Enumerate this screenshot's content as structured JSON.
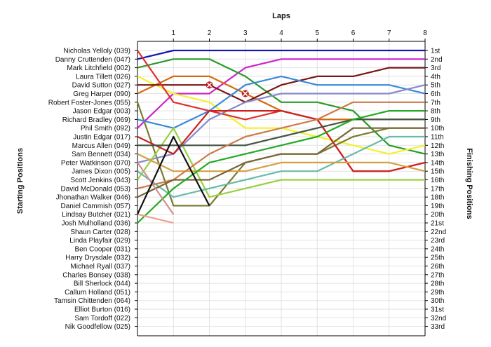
{
  "chart_data": {
    "type": "line",
    "title": "Laps",
    "ylabel_left": "Starting Positions",
    "ylabel_right": "Finishing Positions",
    "x": [
      0,
      1,
      2,
      3,
      4,
      5,
      6,
      7,
      8
    ],
    "x_tick_labels": [
      "1",
      "2",
      "3",
      "4",
      "5",
      "6",
      "7",
      "8"
    ],
    "ylim": [
      1,
      33
    ],
    "y_inverted": true,
    "grid": true,
    "starting_labels": [
      "Nicholas Yelloly (039)",
      "Danny Cruttenden (047)",
      "Mark Litchfield (002)",
      "Laura Tillett (026)",
      "David Sutton (027)",
      "Greg Harper (090)",
      "Robert Foster-Jones (055)",
      "Jason Edgar (003)",
      "Richard Bradley (069)",
      "Phil Smith (092)",
      "Justin Edgar (017)",
      "Marcus Allen (049)",
      "Sam Bennett (034)",
      "Peter Watkinson (070)",
      "James Dixon (005)",
      "Scott Jenkins (043)",
      "David McDonald (053)",
      "Jhonathan Walker (046)",
      "Daniel Cammish (057)",
      "Lindsay Butcher (021)",
      "Josh Mulholland (036)",
      "Shaun Carter (028)",
      "Linda Playfair (029)",
      "Ben Cooper (031)",
      "Harry Drysdale (032)",
      "Michael Ryall (037)",
      "Charles Bonsey (038)",
      "Bill Sherlock (044)",
      "Callum Holland (051)",
      "Tamsin Chittenden (064)",
      "Elliot Burton (016)",
      "Sam Tordoff (022)",
      "Nik Goodfellow (025)"
    ],
    "finishing_labels": [
      "1st",
      "2nd",
      "3rd",
      "4th",
      "5th",
      "6th",
      "7th",
      "8th",
      "9th",
      "10th",
      "11th",
      "12th",
      "13th",
      "14th",
      "15th",
      "16th",
      "17th",
      "18th",
      "19th",
      "20th",
      "21st",
      "22nd",
      "23rd",
      "24th",
      "25th",
      "26th",
      "27th",
      "28th",
      "29th",
      "30th",
      "31st",
      "32nd",
      "33rd"
    ],
    "series": [
      {
        "color": "#1515b0",
        "values": [
          2,
          1,
          1,
          1,
          1,
          1,
          1,
          1,
          1
        ]
      },
      {
        "color": "#cc22cc",
        "values": [
          10,
          6,
          6,
          3,
          2,
          2,
          2,
          2,
          2
        ]
      },
      {
        "color": "#2a9a2a",
        "values": [
          3,
          2,
          2,
          4,
          7,
          7,
          8,
          12,
          13
        ]
      },
      {
        "color": "#f2f22a",
        "values": [
          4,
          6,
          7,
          10,
          10,
          11,
          12,
          13,
          12
        ]
      },
      {
        "color": "#d46a10",
        "values": [
          6,
          4,
          4,
          6,
          8,
          9,
          9,
          9,
          9
        ]
      },
      {
        "color": "#7a1515",
        "values": [
          5,
          5,
          5,
          7,
          5,
          4,
          4,
          3,
          3
        ]
      },
      {
        "color": "#e03030",
        "values": [
          1,
          7,
          8,
          9,
          8,
          9,
          15,
          15,
          14
        ]
      },
      {
        "color": "#7a7a30",
        "values": [
          7,
          19,
          19,
          14,
          13,
          13,
          11,
          10,
          10
        ]
      },
      {
        "color": "#3b8ad8",
        "values": [
          9,
          10,
          8,
          5,
          4,
          5,
          5,
          5,
          6
        ]
      },
      {
        "color": "#8888cc",
        "values": [
          14,
          13,
          9,
          7,
          6,
          6,
          6,
          6,
          5
        ]
      },
      {
        "color": "#9ad040",
        "values": [
          16,
          10,
          18,
          17,
          16,
          16,
          16,
          16,
          16
        ]
      },
      {
        "color": "#cc2020",
        "values": [
          11,
          13,
          8,
          8,
          8,
          9,
          15,
          15,
          14
        ]
      },
      {
        "color": "#445544",
        "values": [
          12,
          12,
          12,
          12,
          11,
          10,
          9,
          9,
          9
        ]
      },
      {
        "color": "#66bbaa",
        "values": [
          15,
          18,
          17,
          16,
          15,
          15,
          13,
          11,
          11
        ]
      },
      {
        "color": "#d4a040",
        "values": [
          13,
          15,
          15,
          15,
          14,
          14,
          14,
          14,
          15
        ]
      },
      {
        "color": "#cc7a4a",
        "values": [
          17,
          16,
          13,
          11,
          10,
          9,
          7,
          7,
          7
        ]
      },
      {
        "color": "#776633",
        "values": [
          18,
          16,
          16,
          14,
          13,
          13,
          10,
          10,
          10
        ]
      },
      {
        "color": "#22aa22",
        "values": [
          21,
          17,
          14,
          13,
          12,
          11,
          9,
          8,
          8
        ]
      },
      {
        "color": "#d09090",
        "values": [
          14,
          20,
          null,
          null,
          null,
          null,
          null,
          null,
          null
        ]
      },
      {
        "color": "#f0a090",
        "values": [
          20,
          21,
          null,
          null,
          null,
          null,
          null,
          null,
          null
        ]
      },
      {
        "color": "#111111",
        "values": [
          20,
          11,
          19,
          null,
          null,
          null,
          null,
          null,
          null
        ]
      }
    ],
    "retirements": [
      {
        "lap": 2,
        "position": 5
      },
      {
        "lap": 3,
        "position": 6
      }
    ]
  }
}
